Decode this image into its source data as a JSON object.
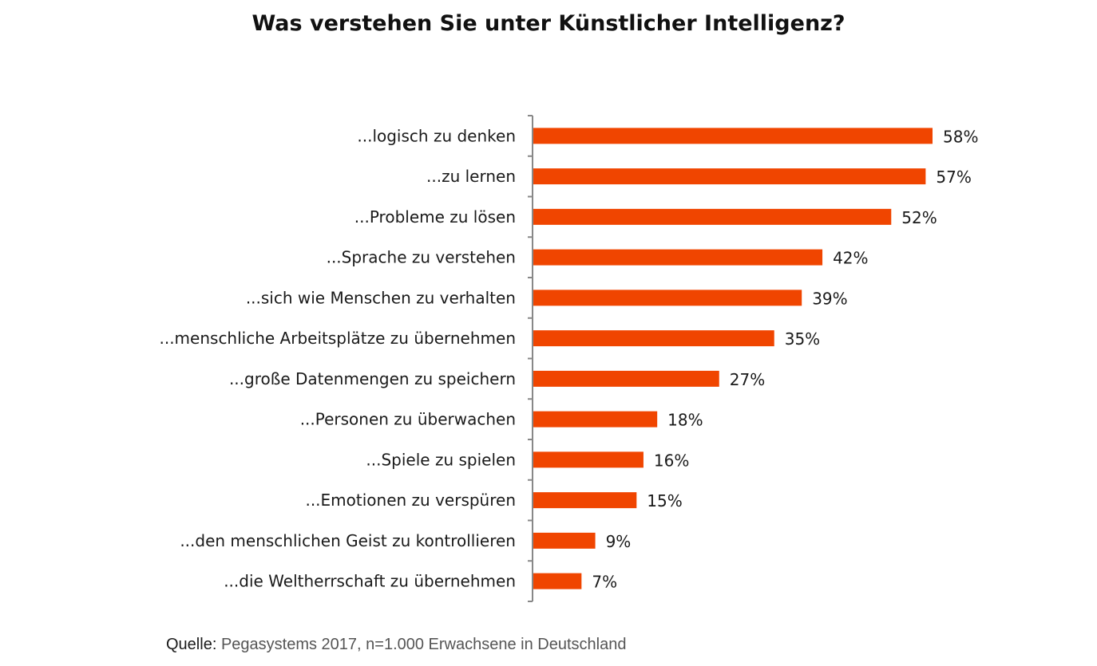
{
  "chart_data": {
    "type": "bar",
    "orientation": "horizontal",
    "title": "Was verstehen Sie unter Künstlicher Intelligenz?",
    "categories": [
      "...logisch zu denken",
      "...zu lernen",
      "...Probleme zu lösen",
      "...Sprache zu verstehen",
      "...sich wie Menschen zu verhalten",
      "...menschliche Arbeitsplätze zu übernehmen",
      "...große Datenmengen zu speichern",
      "...Personen zu überwachen",
      "...Spiele zu spielen",
      "...Emotionen zu verspüren",
      "...den menschlichen Geist zu kontrollieren",
      "...die Weltherrschaft zu übernehmen"
    ],
    "values": [
      58,
      57,
      52,
      42,
      39,
      35,
      27,
      18,
      16,
      15,
      9,
      7
    ],
    "value_labels": [
      "58%",
      "57%",
      "52%",
      "42%",
      "39%",
      "35%",
      "27%",
      "18%",
      "16%",
      "15%",
      "9%",
      "7%"
    ],
    "xlabel": "",
    "ylabel": "",
    "xlim": [
      0,
      58
    ],
    "grid": false,
    "legend": "none",
    "bar_color": "#f04500"
  },
  "source": {
    "label": "Quelle:",
    "text": "Pegasystems 2017, n=1.000 Erwachsene in Deutschland"
  }
}
